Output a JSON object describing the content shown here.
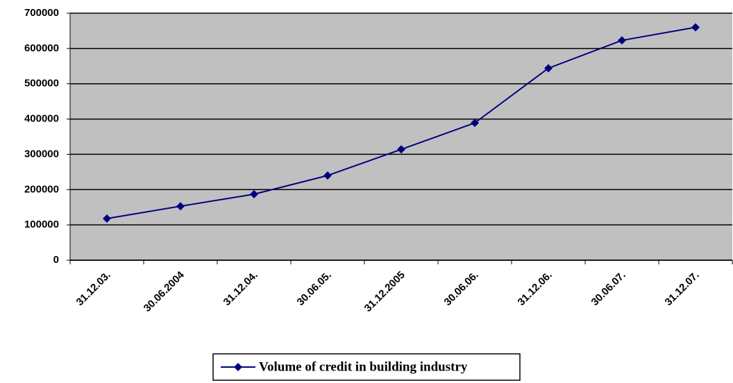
{
  "chart_data": {
    "type": "line",
    "categories": [
      "31.12.03.",
      "30.06.2004",
      "31.12.04.",
      "30.06.05.",
      "31.12.2005",
      "30.06.06.",
      "31.12.06.",
      "30.06.07.",
      "31.12.07."
    ],
    "series": [
      {
        "name": "Volume of credit in building industry",
        "color": "#000080",
        "values": [
          118000,
          153000,
          187000,
          240000,
          314000,
          389000,
          544000,
          623000,
          660000
        ]
      }
    ],
    "ylim": [
      0,
      700000
    ],
    "yticks": [
      0,
      100000,
      200000,
      300000,
      400000,
      500000,
      600000,
      700000
    ],
    "grid": true,
    "plot_background": "#c0c0c0",
    "legend": "bottom"
  }
}
